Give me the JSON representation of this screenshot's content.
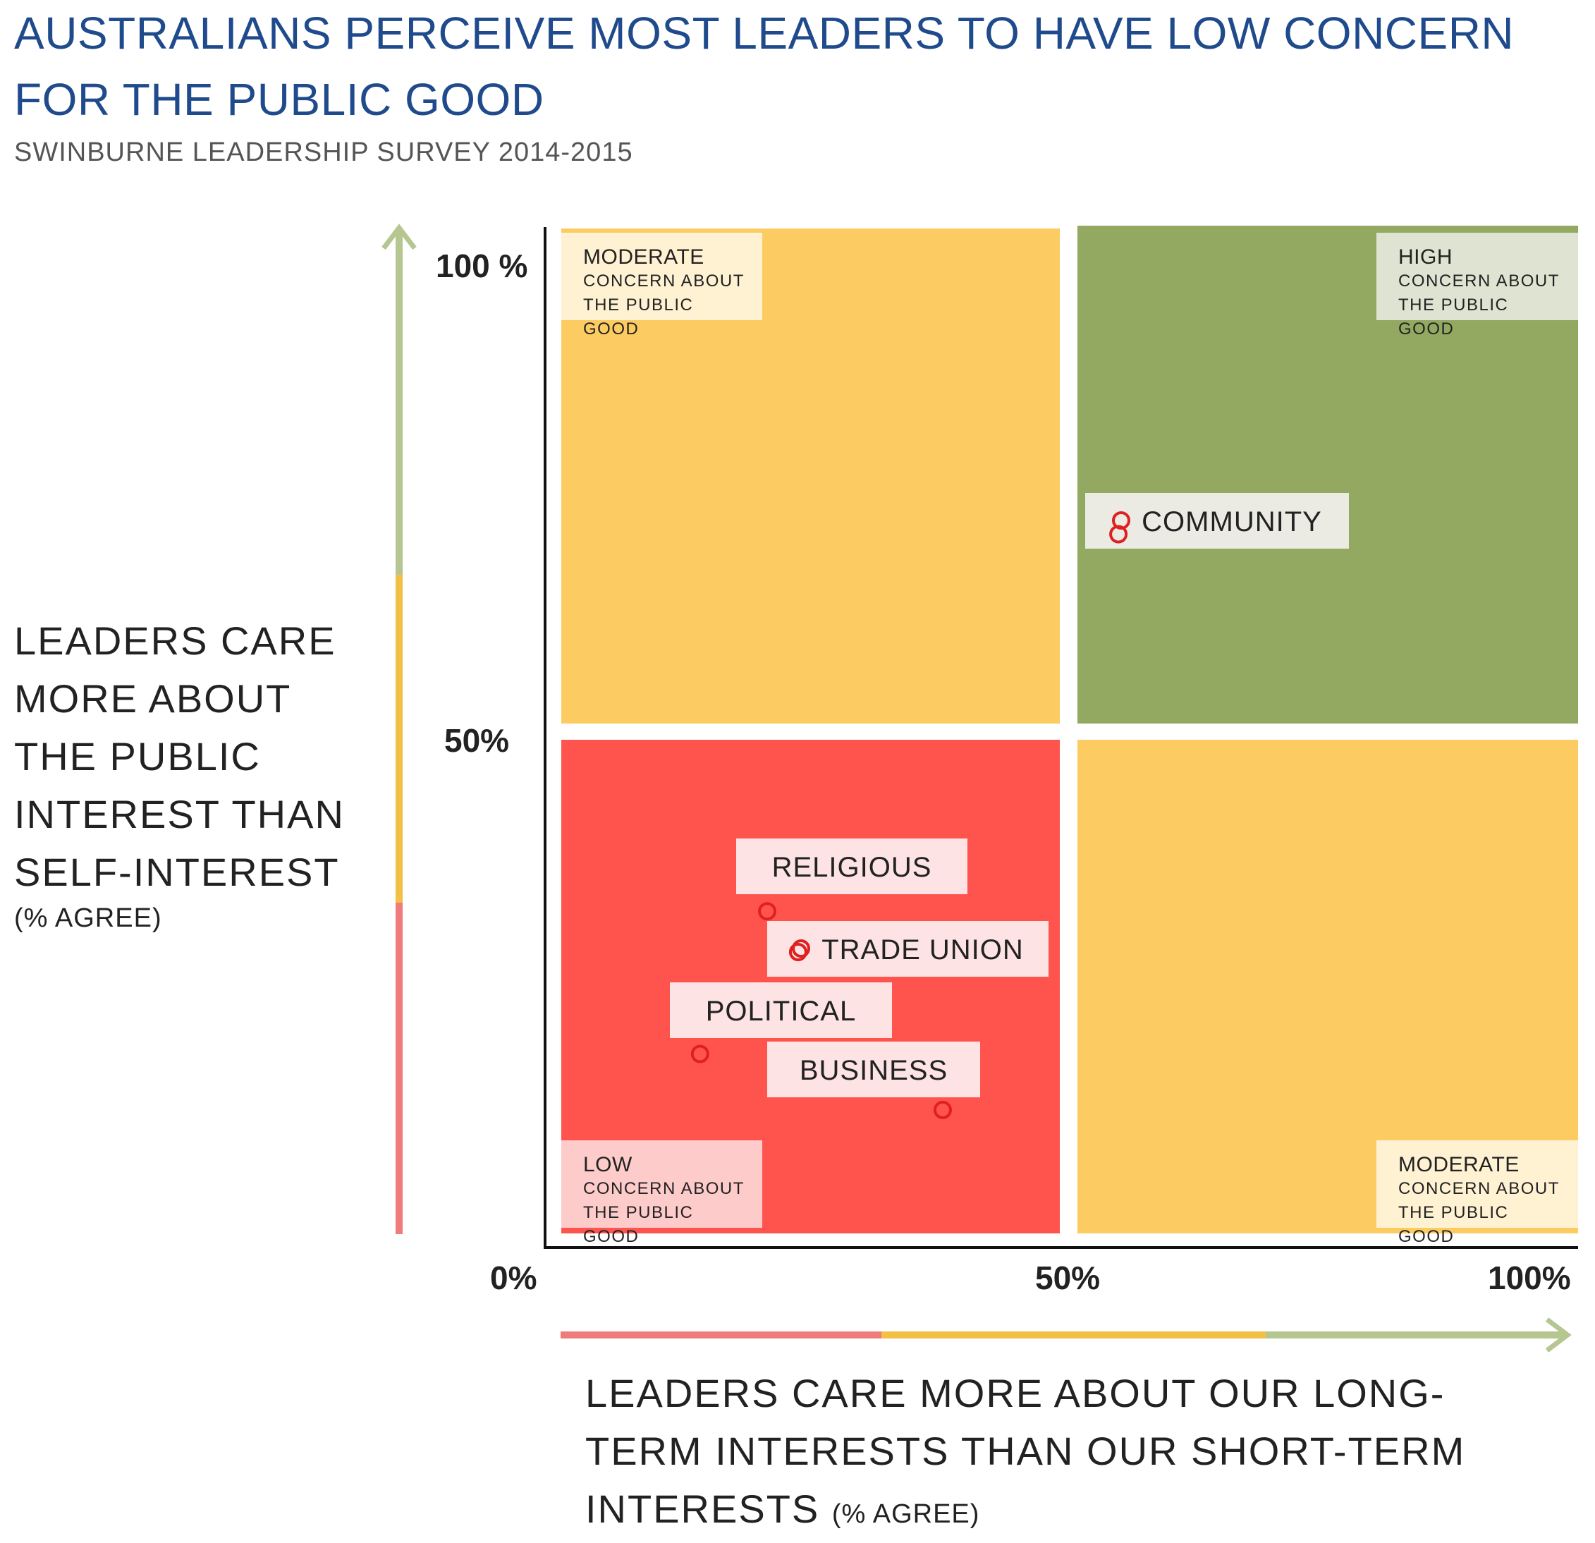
{
  "title": "AUSTRALIANS PERCEIVE MOST LEADERS TO HAVE LOW CONCERN FOR THE PUBLIC GOOD",
  "subtitle": "SWINBURNE LEADERSHIP SURVEY 2014-2015",
  "colors": {
    "low": "#ff544e",
    "moderate": "#fccc62",
    "high": "#93a962",
    "accent_red": "#e02020",
    "title": "#1f4a8c"
  },
  "quadrants": {
    "top_left": {
      "level": "MODERATE",
      "desc": "CONCERN ABOUT THE PUBLIC GOOD"
    },
    "top_right": {
      "level": "HIGH",
      "desc": "CONCERN ABOUT THE PUBLIC GOOD"
    },
    "bottom_left": {
      "level": "LOW",
      "desc": "CONCERN ABOUT THE PUBLIC GOOD"
    },
    "bottom_right": {
      "level": "MODERATE",
      "desc": "CONCERN ABOUT THE PUBLIC GOOD"
    }
  },
  "chart_data": {
    "type": "scatter",
    "title": "AUSTRALIANS PERCEIVE MOST LEADERS TO HAVE LOW CONCERN FOR THE PUBLIC GOOD",
    "subtitle": "SWINBURNE LEADERSHIP SURVEY 2014-2015",
    "xlabel": "LEADERS CARE MORE ABOUT OUR LONG-TERM INTERESTS THAN OUR SHORT-TERM INTERESTS",
    "xlabel_note": "(% AGREE)",
    "ylabel": "LEADERS CARE MORE ABOUT THE PUBLIC INTEREST THAN SELF-INTEREST",
    "ylabel_note": "(% AGREE)",
    "xlim": [
      0,
      100
    ],
    "ylim": [
      0,
      100
    ],
    "x_ticks": [
      "0%",
      "50%",
      "100%"
    ],
    "y_ticks": [
      "100 %",
      "50%"
    ],
    "grid": false,
    "points": [
      {
        "label": "COMMUNITY",
        "x": 55.5,
        "y": 70
      },
      {
        "label": "RELIGIOUS",
        "x": 21.5,
        "y": 33
      },
      {
        "label": "TRADE UNION",
        "x": 24.5,
        "y": 29
      },
      {
        "label": "POLITICAL",
        "x": 15,
        "y": 19
      },
      {
        "label": "BUSINESS",
        "x": 38.5,
        "y": 13.5
      }
    ]
  }
}
